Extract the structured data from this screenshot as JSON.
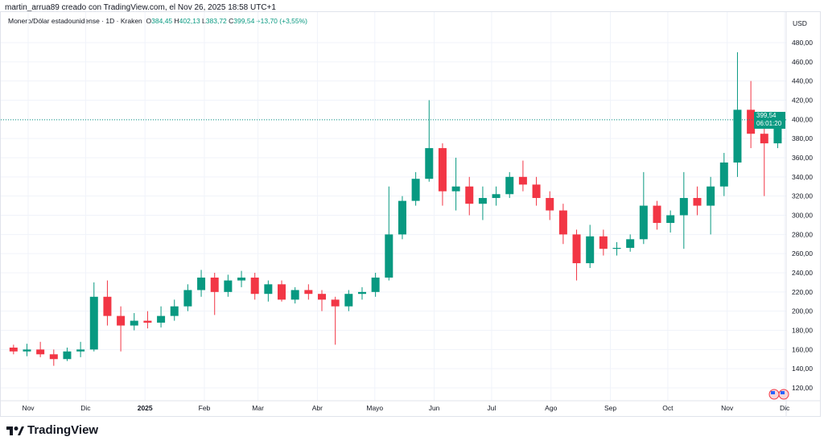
{
  "caption": "martin_arrua89 creado con TradingView.com, el Nov 26, 2025 18:58 UTC+1",
  "legend": {
    "symbol": "Monero/Dólar estadounidense · 1D · Kraken",
    "o_label": "O",
    "o": "384,45",
    "h_label": "H",
    "h": "402,13",
    "l_label": "L",
    "l": "383,72",
    "c_label": "C",
    "c": "399,54",
    "change": "+13,70 (+3,55%)"
  },
  "currency": "USD",
  "last_price": {
    "price": "399,54",
    "countdown": "06:01:20"
  },
  "brand": "TradingView",
  "colors": {
    "up": "#089981",
    "down": "#f23645",
    "grid": "#f0f3fa"
  },
  "chart_data": {
    "type": "candlestick",
    "interval": "1D (approximated here as weekly OHLC)",
    "ylim": [
      110,
      490
    ],
    "y_ticks": [
      "120,00",
      "140,00",
      "160,00",
      "180,00",
      "200,00",
      "220,00",
      "240,00",
      "260,00",
      "280,00",
      "300,00",
      "320,00",
      "340,00",
      "360,00",
      "380,00",
      "400,00",
      "420,00",
      "440,00",
      "460,00",
      "480,00"
    ],
    "x_ticks": [
      {
        "label": "Nov",
        "date": "2024-11-01"
      },
      {
        "label": "Dic",
        "date": "2024-12-01"
      },
      {
        "label": "2025",
        "date": "2025-01-01",
        "bold": true
      },
      {
        "label": "Feb",
        "date": "2025-02-01"
      },
      {
        "label": "Mar",
        "date": "2025-03-01"
      },
      {
        "label": "Abr",
        "date": "2025-04-01"
      },
      {
        "label": "Mayo",
        "date": "2025-05-01"
      },
      {
        "label": "Jun",
        "date": "2025-06-01"
      },
      {
        "label": "Jul",
        "date": "2025-07-01"
      },
      {
        "label": "Ago",
        "date": "2025-08-01"
      },
      {
        "label": "Sep",
        "date": "2025-09-01"
      },
      {
        "label": "Oct",
        "date": "2025-10-01"
      },
      {
        "label": "Nov",
        "date": "2025-11-01"
      },
      {
        "label": "Dic",
        "date": "2025-12-01"
      }
    ],
    "last_value": 399.54,
    "candles": [
      [
        "2024-10-21",
        162,
        165,
        155,
        158
      ],
      [
        "2024-10-28",
        158,
        166,
        153,
        160
      ],
      [
        "2024-11-04",
        160,
        168,
        152,
        155
      ],
      [
        "2024-11-11",
        155,
        160,
        143,
        150
      ],
      [
        "2024-11-18",
        150,
        162,
        148,
        158
      ],
      [
        "2024-11-25",
        158,
        168,
        152,
        160
      ],
      [
        "2024-12-02",
        160,
        230,
        158,
        215
      ],
      [
        "2024-12-09",
        215,
        232,
        185,
        195
      ],
      [
        "2024-12-16",
        195,
        205,
        158,
        185
      ],
      [
        "2024-12-23",
        185,
        198,
        180,
        190
      ],
      [
        "2024-12-30",
        190,
        200,
        182,
        188
      ],
      [
        "2025-01-06",
        188,
        205,
        183,
        195
      ],
      [
        "2025-01-13",
        195,
        212,
        190,
        205
      ],
      [
        "2025-01-20",
        205,
        228,
        200,
        222
      ],
      [
        "2025-01-27",
        222,
        243,
        215,
        235
      ],
      [
        "2025-02-03",
        235,
        240,
        196,
        220
      ],
      [
        "2025-02-10",
        220,
        238,
        215,
        232
      ],
      [
        "2025-02-17",
        232,
        242,
        225,
        235
      ],
      [
        "2025-02-24",
        235,
        240,
        212,
        218
      ],
      [
        "2025-03-03",
        218,
        232,
        210,
        228
      ],
      [
        "2025-03-10",
        228,
        232,
        210,
        212
      ],
      [
        "2025-03-17",
        212,
        225,
        208,
        222
      ],
      [
        "2025-03-24",
        222,
        228,
        212,
        218
      ],
      [
        "2025-03-31",
        218,
        222,
        200,
        212
      ],
      [
        "2025-04-07",
        212,
        215,
        165,
        205
      ],
      [
        "2025-04-14",
        205,
        222,
        200,
        218
      ],
      [
        "2025-04-21",
        218,
        225,
        212,
        220
      ],
      [
        "2025-04-28",
        220,
        240,
        215,
        235
      ],
      [
        "2025-05-05",
        235,
        330,
        232,
        280
      ],
      [
        "2025-05-12",
        280,
        320,
        275,
        315
      ],
      [
        "2025-05-19",
        315,
        345,
        310,
        338
      ],
      [
        "2025-05-26",
        338,
        420,
        335,
        370
      ],
      [
        "2025-06-02",
        370,
        375,
        310,
        325
      ],
      [
        "2025-06-09",
        325,
        360,
        305,
        330
      ],
      [
        "2025-06-16",
        330,
        340,
        300,
        312
      ],
      [
        "2025-06-23",
        312,
        330,
        295,
        318
      ],
      [
        "2025-06-30",
        318,
        330,
        310,
        322
      ],
      [
        "2025-07-07",
        322,
        345,
        318,
        340
      ],
      [
        "2025-07-14",
        340,
        357,
        325,
        332
      ],
      [
        "2025-07-21",
        332,
        340,
        310,
        318
      ],
      [
        "2025-07-28",
        318,
        325,
        295,
        305
      ],
      [
        "2025-08-04",
        305,
        312,
        270,
        280
      ],
      [
        "2025-08-11",
        280,
        285,
        232,
        250
      ],
      [
        "2025-08-18",
        250,
        290,
        245,
        278
      ],
      [
        "2025-08-25",
        278,
        285,
        258,
        265
      ],
      [
        "2025-09-01",
        265,
        272,
        258,
        266
      ],
      [
        "2025-09-08",
        266,
        280,
        262,
        275
      ],
      [
        "2025-09-15",
        275,
        345,
        270,
        310
      ],
      [
        "2025-09-22",
        310,
        315,
        285,
        292
      ],
      [
        "2025-09-29",
        292,
        305,
        282,
        300
      ],
      [
        "2025-10-06",
        300,
        345,
        265,
        318
      ],
      [
        "2025-10-13",
        318,
        330,
        300,
        310
      ],
      [
        "2025-10-20",
        310,
        340,
        280,
        330
      ],
      [
        "2025-10-27",
        330,
        365,
        320,
        355
      ],
      [
        "2025-11-03",
        355,
        470,
        340,
        410
      ],
      [
        "2025-11-10",
        410,
        440,
        370,
        385
      ],
      [
        "2025-11-17",
        385,
        395,
        320,
        375
      ],
      [
        "2025-11-24",
        375,
        402,
        370,
        399.54
      ]
    ]
  }
}
